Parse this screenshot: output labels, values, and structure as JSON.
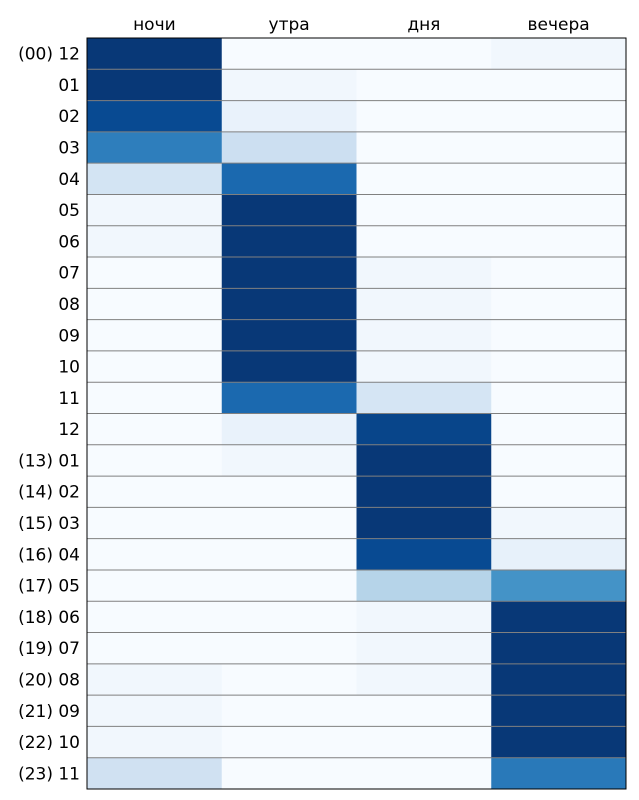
{
  "chart_data": {
    "type": "heatmap",
    "title": "",
    "xlabel": "",
    "ylabel": "",
    "columns": [
      "ночи",
      "утра",
      "дня",
      "вечера"
    ],
    "rows": [
      "(00) 12",
      "01",
      "02",
      "03",
      "04",
      "05",
      "06",
      "07",
      "08",
      "09",
      "10",
      "11",
      "12",
      "(13) 01",
      "(14) 02",
      "(15) 03",
      "(16) 04",
      "(17) 05",
      "(18) 06",
      "(19) 07",
      "(20) 08",
      "(21) 09",
      "(22) 10",
      "(23) 11"
    ],
    "values": [
      [
        0.97,
        0.0,
        0.0,
        0.03
      ],
      [
        0.97,
        0.03,
        0.0,
        0.0
      ],
      [
        0.9,
        0.07,
        0.0,
        0.0
      ],
      [
        0.7,
        0.22,
        0.0,
        0.0
      ],
      [
        0.18,
        0.78,
        0.0,
        0.0
      ],
      [
        0.03,
        0.97,
        0.0,
        0.0
      ],
      [
        0.03,
        0.97,
        0.0,
        0.0
      ],
      [
        0.0,
        0.97,
        0.03,
        0.0
      ],
      [
        0.0,
        0.97,
        0.03,
        0.0
      ],
      [
        0.0,
        0.97,
        0.03,
        0.0
      ],
      [
        0.0,
        0.97,
        0.03,
        0.0
      ],
      [
        0.0,
        0.78,
        0.17,
        0.0
      ],
      [
        0.0,
        0.07,
        0.92,
        0.0
      ],
      [
        0.0,
        0.03,
        0.97,
        0.0
      ],
      [
        0.0,
        0.0,
        0.97,
        0.0
      ],
      [
        0.0,
        0.0,
        0.97,
        0.03
      ],
      [
        0.0,
        0.0,
        0.9,
        0.08
      ],
      [
        0.0,
        0.0,
        0.3,
        0.62
      ],
      [
        0.0,
        0.0,
        0.03,
        0.97
      ],
      [
        0.0,
        0.0,
        0.03,
        0.97
      ],
      [
        0.03,
        0.0,
        0.03,
        0.97
      ],
      [
        0.03,
        0.0,
        0.0,
        0.97
      ],
      [
        0.03,
        0.0,
        0.0,
        0.97
      ],
      [
        0.2,
        0.0,
        0.0,
        0.72
      ]
    ],
    "colormap": "Blues",
    "vmin": 0,
    "vmax": 1,
    "colors": {
      "low": "#f7fbff",
      "high": "#08306b",
      "row_divider": "#808080",
      "frame": "#000000"
    }
  }
}
